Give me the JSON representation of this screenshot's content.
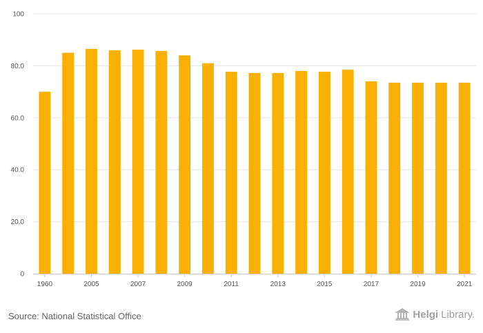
{
  "chart_data": {
    "type": "bar",
    "categories": [
      "1960",
      "",
      "2005",
      "",
      "2007",
      "",
      "2009",
      "",
      "2011",
      "",
      "2013",
      "",
      "2015",
      "",
      "2017",
      "",
      "2019",
      "",
      "2021"
    ],
    "values": [
      70.0,
      85.0,
      86.5,
      86.0,
      86.2,
      85.7,
      84.0,
      81.0,
      77.7,
      77.2,
      77.2,
      78.0,
      77.7,
      78.5,
      74.0,
      73.5,
      73.5,
      73.5,
      73.5
    ],
    "ylim": [
      0,
      100
    ],
    "y_ticks": [
      "0",
      "20.0",
      "40.0",
      "60.0",
      "80.0",
      "100"
    ],
    "y_tick_values": [
      0,
      20,
      40,
      60,
      80,
      100
    ],
    "bar_color": "#F9B000",
    "grid_color": "#e6e6e6",
    "grid": true,
    "title": "",
    "xlabel": "",
    "ylabel": ""
  },
  "footer": {
    "source": "Source: National Statistical Office",
    "logo_text_bold": "Helgi",
    "logo_text_light": "Library."
  }
}
